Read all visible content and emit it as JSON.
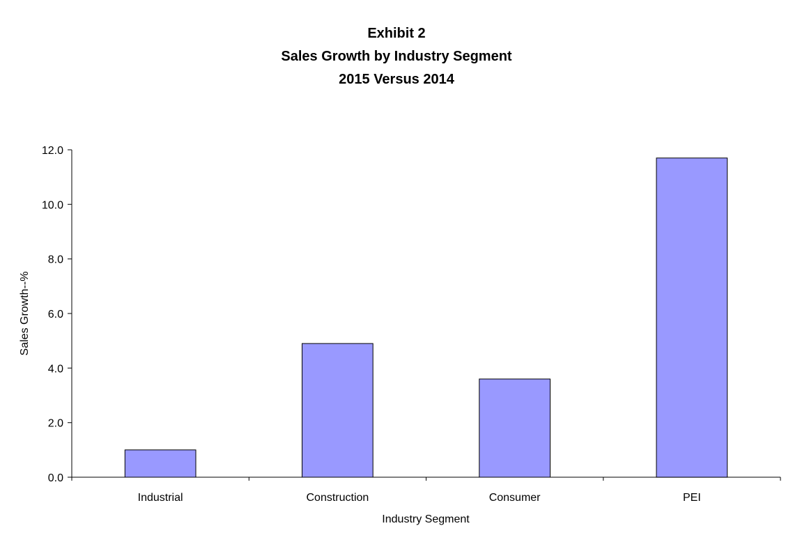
{
  "chart_data": {
    "type": "bar",
    "title": [
      "Exhibit 2",
      "Sales Growth by Industry Segment",
      "2015 Versus 2014"
    ],
    "xlabel": "Industry Segment",
    "ylabel": "Sales Growth--%",
    "categories": [
      "Industrial",
      "Construction",
      "Consumer",
      "PEI"
    ],
    "values": [
      1.0,
      4.9,
      3.6,
      11.7
    ],
    "ylim": [
      0,
      12
    ],
    "yticks": [
      "0.0",
      "2.0",
      "4.0",
      "6.0",
      "8.0",
      "10.0",
      "12.0"
    ],
    "grid": false,
    "legend": "none",
    "bar_color": "#9999ff",
    "bar_border_color": "#000000"
  }
}
